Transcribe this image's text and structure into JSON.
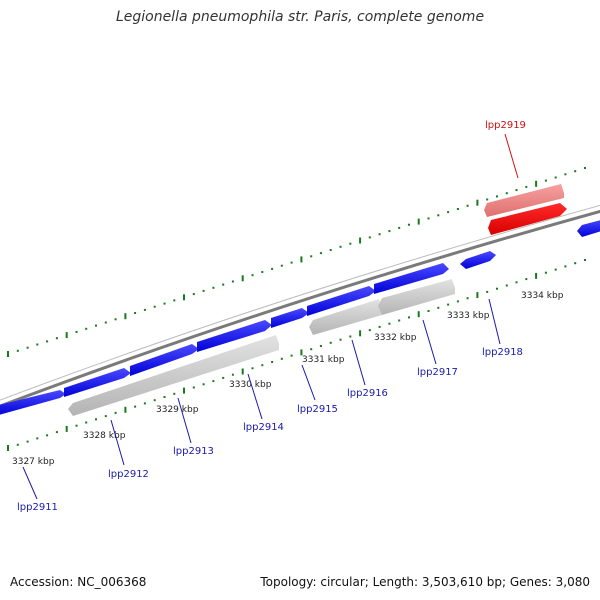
{
  "title": "Legionella pneumophila str. Paris, complete genome",
  "footer": {
    "accession": "Accession: NC_006368",
    "stats": "Topology: circular; Length: 3,503,610 bp; Genes: 3,080"
  },
  "colors": {
    "forward_gene": "#0a0af0",
    "reverse_gene": "#c8c8c8",
    "highlight_gene": "#ee0000",
    "highlight_gene_light": "#f08888",
    "label_default": "#1a1aaa",
    "label_highlight": "#cc1111",
    "tick": "#1a7a1a",
    "backbone": "#888888"
  },
  "tick_labels": [
    "3327 kbp",
    "3328 kbp",
    "3329 kbp",
    "3330 kbp",
    "3331 kbp",
    "3332 kbp",
    "3333 kbp",
    "3334 kbp"
  ],
  "gene_labels": [
    {
      "name": "lpp2911",
      "highlight": false
    },
    {
      "name": "lpp2912",
      "highlight": false
    },
    {
      "name": "lpp2913",
      "highlight": false
    },
    {
      "name": "lpp2914",
      "highlight": false
    },
    {
      "name": "lpp2915",
      "highlight": false
    },
    {
      "name": "lpp2916",
      "highlight": false
    },
    {
      "name": "lpp2917",
      "highlight": false
    },
    {
      "name": "lpp2918",
      "highlight": false
    },
    {
      "name": "lpp2919",
      "highlight": true
    }
  ]
}
